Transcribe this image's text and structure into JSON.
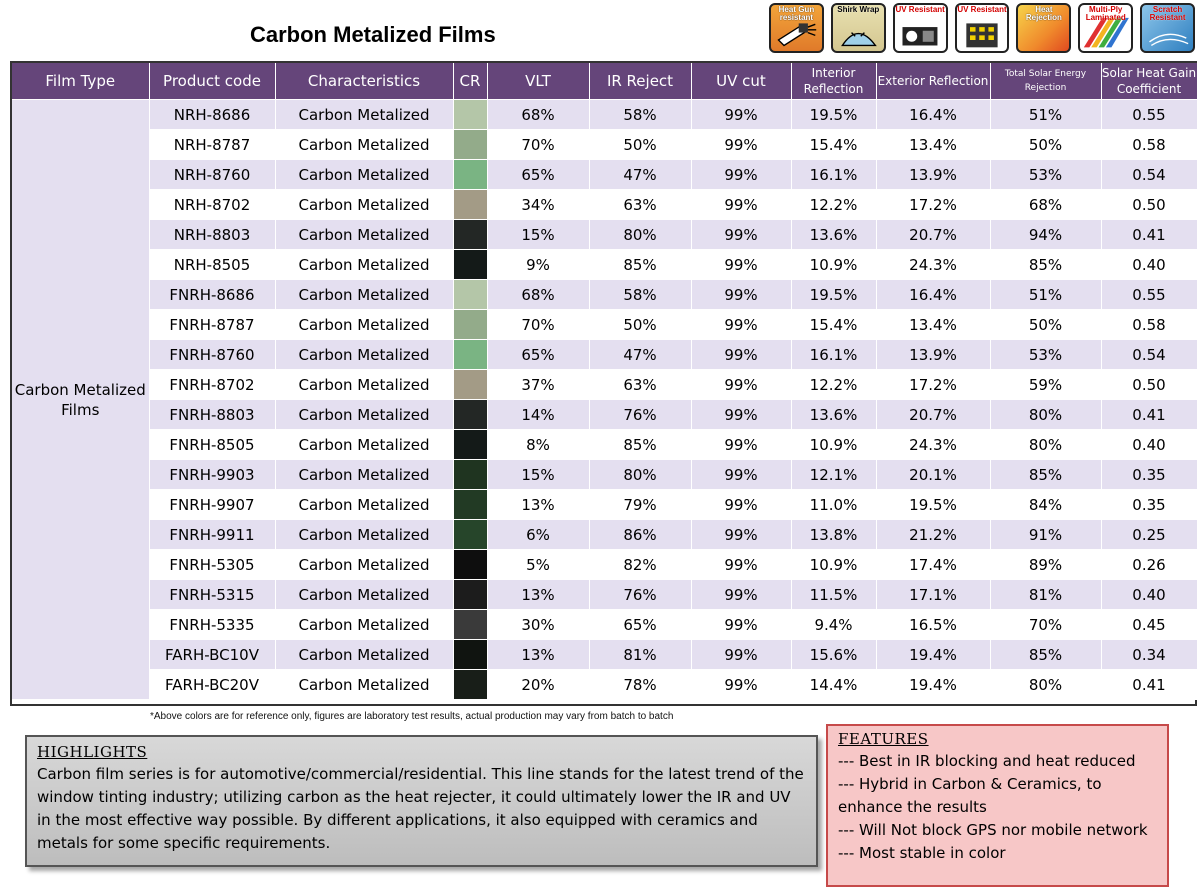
{
  "title": "Carbon Metalized Films",
  "feature_icons": [
    {
      "label": "Heat Gun resistant",
      "icon": "heat-gun-icon"
    },
    {
      "label": "Shirk Wrap",
      "icon": "shrink-wrap-icon"
    },
    {
      "label": "UV Resistant",
      "icon": "uv-resistant-icon"
    },
    {
      "label": "UV Resistant",
      "icon": "uv-building-icon"
    },
    {
      "label": "Heat Rejection",
      "icon": "heat-rejection-icon"
    },
    {
      "label": "Multi-Ply Laminated",
      "icon": "multi-ply-icon"
    },
    {
      "label": "Scratch Resistant",
      "icon": "scratch-resistant-icon"
    }
  ],
  "table": {
    "headers": [
      "Film Type",
      "Product code",
      "Characteristics",
      "CR",
      "VLT",
      "IR Reject",
      "UV cut",
      "Interior Reflection",
      "Exterior Reflection",
      "Total Solar Energy Rejection",
      "Solar Heat Gain Coefficient"
    ],
    "film_type": "Carbon Metalized Films",
    "rows": [
      {
        "code": "NRH-8686",
        "char": "Carbon Metalized",
        "color": "#b4c6a8",
        "vlt": "68%",
        "ir": "58%",
        "uv": "99%",
        "int": "19.5%",
        "ext": "16.4%",
        "tser": "51%",
        "shgc": "0.55"
      },
      {
        "code": "NRH-8787",
        "char": "Carbon Metalized",
        "color": "#93ab8a",
        "vlt": "70%",
        "ir": "50%",
        "uv": "99%",
        "int": "15.4%",
        "ext": "13.4%",
        "tser": "50%",
        "shgc": "0.58"
      },
      {
        "code": "NRH-8760",
        "char": "Carbon Metalized",
        "color": "#7ab483",
        "vlt": "65%",
        "ir": "47%",
        "uv": "99%",
        "int": "16.1%",
        "ext": "13.9%",
        "tser": "53%",
        "shgc": "0.54"
      },
      {
        "code": "NRH-8702",
        "char": "Carbon Metalized",
        "color": "#a39b86",
        "vlt": "34%",
        "ir": "63%",
        "uv": "99%",
        "int": "12.2%",
        "ext": "17.2%",
        "tser": "68%",
        "shgc": "0.50"
      },
      {
        "code": "NRH-8803",
        "char": "Carbon Metalized",
        "color": "#232725",
        "vlt": "15%",
        "ir": "80%",
        "uv": "99%",
        "int": "13.6%",
        "ext": "20.7%",
        "tser": "94%",
        "shgc": "0.41"
      },
      {
        "code": "NRH-8505",
        "char": "Carbon Metalized",
        "color": "#141a18",
        "vlt": "9%",
        "ir": "85%",
        "uv": "99%",
        "int": "10.9%",
        "ext": "24.3%",
        "tser": "85%",
        "shgc": "0.40"
      },
      {
        "code": "FNRH-8686",
        "char": "Carbon Metalized",
        "color": "#b4c6a8",
        "vlt": "68%",
        "ir": "58%",
        "uv": "99%",
        "int": "19.5%",
        "ext": "16.4%",
        "tser": "51%",
        "shgc": "0.55"
      },
      {
        "code": "FNRH-8787",
        "char": "Carbon Metalized",
        "color": "#93ab8a",
        "vlt": "70%",
        "ir": "50%",
        "uv": "99%",
        "int": "15.4%",
        "ext": "13.4%",
        "tser": "50%",
        "shgc": "0.58"
      },
      {
        "code": "FNRH-8760",
        "char": "Carbon Metalized",
        "color": "#7ab483",
        "vlt": "65%",
        "ir": "47%",
        "uv": "99%",
        "int": "16.1%",
        "ext": "13.9%",
        "tser": "53%",
        "shgc": "0.54"
      },
      {
        "code": "FNRH-8702",
        "char": "Carbon Metalized",
        "color": "#a39b86",
        "vlt": "37%",
        "ir": "63%",
        "uv": "99%",
        "int": "12.2%",
        "ext": "17.2%",
        "tser": "59%",
        "shgc": "0.50"
      },
      {
        "code": "FNRH-8803",
        "char": "Carbon Metalized",
        "color": "#232725",
        "vlt": "14%",
        "ir": "76%",
        "uv": "99%",
        "int": "13.6%",
        "ext": "20.7%",
        "tser": "80%",
        "shgc": "0.41"
      },
      {
        "code": "FNRH-8505",
        "char": "Carbon Metalized",
        "color": "#141a18",
        "vlt": "8%",
        "ir": "85%",
        "uv": "99%",
        "int": "10.9%",
        "ext": "24.3%",
        "tser": "80%",
        "shgc": "0.40"
      },
      {
        "code": "FNRH-9903",
        "char": "Carbon Metalized",
        "color": "#1f3420",
        "vlt": "15%",
        "ir": "80%",
        "uv": "99%",
        "int": "12.1%",
        "ext": "20.1%",
        "tser": "85%",
        "shgc": "0.35"
      },
      {
        "code": "FNRH-9907",
        "char": "Carbon Metalized",
        "color": "#223a24",
        "vlt": "13%",
        "ir": "79%",
        "uv": "99%",
        "int": "11.0%",
        "ext": "19.5%",
        "tser": "84%",
        "shgc": "0.35"
      },
      {
        "code": "FNRH-9911",
        "char": "Carbon Metalized",
        "color": "#26452a",
        "vlt": "6%",
        "ir": "86%",
        "uv": "99%",
        "int": "13.8%",
        "ext": "21.2%",
        "tser": "91%",
        "shgc": "0.25"
      },
      {
        "code": "FNRH-5305",
        "char": "Carbon Metalized",
        "color": "#0e0e0e",
        "vlt": "5%",
        "ir": "82%",
        "uv": "99%",
        "int": "10.9%",
        "ext": "17.4%",
        "tser": "89%",
        "shgc": "0.26"
      },
      {
        "code": "FNRH-5315",
        "char": "Carbon Metalized",
        "color": "#1c1c1c",
        "vlt": "13%",
        "ir": "76%",
        "uv": "99%",
        "int": "11.5%",
        "ext": "17.1%",
        "tser": "81%",
        "shgc": "0.40"
      },
      {
        "code": "FNRH-5335",
        "char": "Carbon Metalized",
        "color": "#3a3a3a",
        "vlt": "30%",
        "ir": "65%",
        "uv": "99%",
        "int": "9.4%",
        "ext": "16.5%",
        "tser": "70%",
        "shgc": "0.45"
      },
      {
        "code": "FARH-BC10V",
        "char": "Carbon Metalized",
        "color": "#101410",
        "vlt": "13%",
        "ir": "81%",
        "uv": "99%",
        "int": "15.6%",
        "ext": "19.4%",
        "tser": "85%",
        "shgc": "0.34"
      },
      {
        "code": "FARH-BC20V",
        "char": "Carbon Metalized",
        "color": "#181e18",
        "vlt": "20%",
        "ir": "78%",
        "uv": "99%",
        "int": "14.4%",
        "ext": "19.4%",
        "tser": "80%",
        "shgc": "0.41"
      }
    ]
  },
  "footnote": "*Above colors are for reference only, figures are laboratory test results, actual production may vary from batch to batch",
  "highlights": {
    "title": "HIGHLIGHTS",
    "text": "Carbon film series is for automotive/commercial/residential. This line stands for the latest trend of the window tinting industry; utilizing carbon as the heat rejecter, it could ultimately lower the IR and UV in the most effective way possible. By different applications, it also equipped with ceramics and metals for some specific requirements."
  },
  "features": {
    "title": "FEATURES",
    "items": [
      "--- Best in IR blocking and heat reduced",
      "--- Hybrid in Carbon & Ceramics, to enhance the results",
      "--- Will Not block GPS nor mobile network",
      "--- Most stable in color"
    ]
  },
  "colors": {
    "header_bg": "#65457a",
    "row_shade": "#e4dff0",
    "features_bg": "#f7c7c7",
    "features_border": "#c64a4a"
  }
}
